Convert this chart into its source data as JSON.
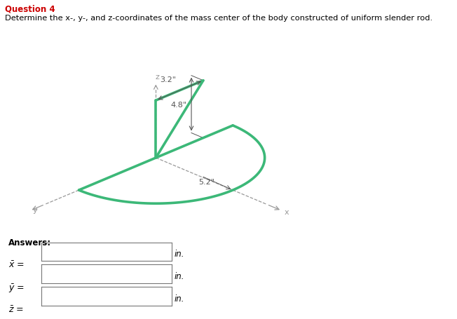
{
  "title": "Question 4",
  "subtitle": "Determine the x-, y-, and z-coordinates of the mass center of the body constructed of uniform slender rod.",
  "dim_32": "3.2\"",
  "dim_48": "4.8\"",
  "dim_52": "5.2\"",
  "answers_label": "Answers:",
  "answer_unit": "in.",
  "rod_color": "#3cb878",
  "axis_dash_color": "#999999",
  "dim_line_color": "#555555",
  "bg_color": "#ffffff",
  "title_color": "#cc0000",
  "text_color": "#000000",
  "rod_lw": 2.6,
  "proj_ox": 0.32,
  "proj_oy": 0.42,
  "proj_scale": 0.72
}
